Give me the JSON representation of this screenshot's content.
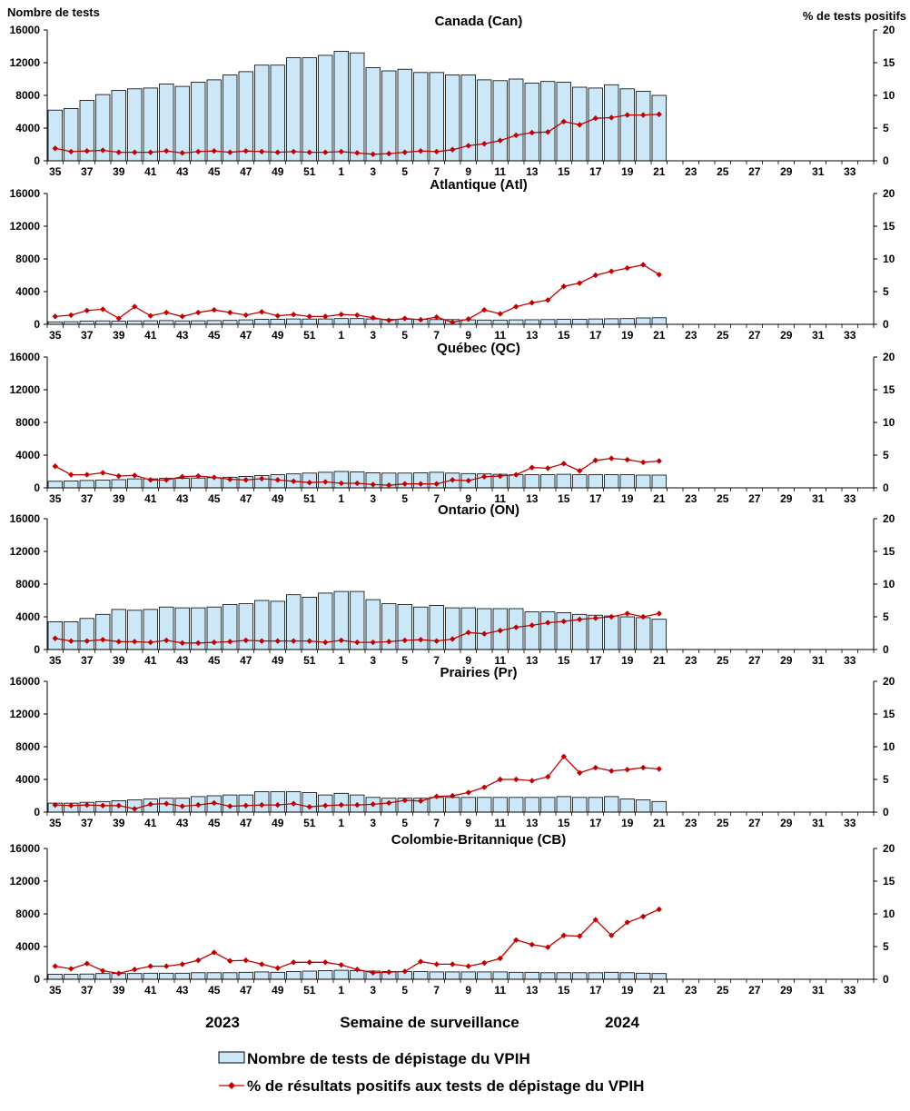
{
  "figure": {
    "left_axis_title": "Nombre de tests",
    "right_axis_title": "% de tests positifs",
    "xlabel": "Semaine de surveillance",
    "year_labels": [
      "2023",
      "2024"
    ],
    "legend": {
      "bars": "Nombre de tests de dépistage du VPIH",
      "line": "% de résultats positifs aux tests de dépistage du VPIH"
    },
    "colors": {
      "bar_fill": "#cce8f8",
      "bar_stroke": "#000000",
      "line": "#c00000"
    }
  },
  "chart_data": [
    {
      "type": "bar+line",
      "title": "Canada (Can)",
      "weeks": [
        35,
        36,
        37,
        38,
        39,
        40,
        41,
        42,
        43,
        44,
        45,
        46,
        47,
        48,
        49,
        50,
        51,
        52,
        1,
        2,
        3,
        4,
        5,
        6,
        7,
        8,
        9,
        10,
        11,
        12,
        13,
        14,
        15,
        16,
        17,
        18,
        19,
        20,
        21,
        22,
        23,
        24,
        25,
        26,
        27,
        28,
        29,
        30,
        31,
        32,
        33,
        34
      ],
      "x_tick_labels": [
        "35",
        "37",
        "39",
        "41",
        "43",
        "45",
        "47",
        "49",
        "51",
        "1",
        "3",
        "5",
        "7",
        "9",
        "11",
        "13",
        "15",
        "17",
        "19",
        "21",
        "23",
        "25",
        "27",
        "29",
        "31",
        "33"
      ],
      "tests": [
        6200,
        6400,
        7400,
        8100,
        8600,
        8800,
        8900,
        9400,
        9100,
        9600,
        9900,
        10500,
        10900,
        11700,
        11700,
        12600,
        12600,
        12900,
        13400,
        13200,
        11400,
        11000,
        11200,
        10800,
        10800,
        10500,
        10500,
        9900,
        9800,
        10000,
        9500,
        9700,
        9600,
        9000,
        8900,
        9300,
        8800,
        8500,
        8000
      ],
      "pct_positive": [
        1.9,
        1.4,
        1.5,
        1.6,
        1.3,
        1.3,
        1.3,
        1.5,
        1.2,
        1.4,
        1.5,
        1.3,
        1.5,
        1.4,
        1.3,
        1.4,
        1.3,
        1.3,
        1.4,
        1.2,
        1.0,
        1.1,
        1.3,
        1.5,
        1.4,
        1.7,
        2.3,
        2.6,
        3.1,
        3.9,
        4.3,
        4.4,
        6.0,
        5.5,
        6.5,
        6.6,
        7.0,
        7.0,
        7.1
      ],
      "ylim_left": [
        0,
        16000
      ],
      "yticks_left": [
        0,
        4000,
        8000,
        12000,
        16000
      ],
      "ylim_right": [
        0,
        20
      ],
      "yticks_right": [
        0,
        5,
        10,
        15,
        20
      ]
    },
    {
      "type": "bar+line",
      "title": "Atlantique (Atl)",
      "weeks": [
        35,
        36,
        37,
        38,
        39,
        40,
        41,
        42,
        43,
        44,
        45,
        46,
        47,
        48,
        49,
        50,
        51,
        52,
        1,
        2,
        3,
        4,
        5,
        6,
        7,
        8,
        9,
        10,
        11,
        12,
        13,
        14,
        15,
        16,
        17,
        18,
        19,
        20,
        21,
        22,
        23,
        24,
        25,
        26,
        27,
        28,
        29,
        30,
        31,
        32,
        33,
        34
      ],
      "x_tick_labels": [
        "35",
        "37",
        "39",
        "41",
        "43",
        "45",
        "47",
        "49",
        "51",
        "1",
        "3",
        "5",
        "7",
        "9",
        "11",
        "13",
        "15",
        "17",
        "19",
        "21",
        "23",
        "25",
        "27",
        "29",
        "31",
        "33"
      ],
      "tests": [
        300,
        320,
        380,
        420,
        380,
        420,
        430,
        450,
        420,
        430,
        460,
        480,
        550,
        600,
        620,
        650,
        640,
        650,
        700,
        700,
        650,
        600,
        620,
        600,
        580,
        580,
        550,
        520,
        520,
        540,
        560,
        580,
        600,
        620,
        650,
        680,
        700,
        780,
        800
      ],
      "pct_positive": [
        1.2,
        1.4,
        2.1,
        2.3,
        0.9,
        2.7,
        1.3,
        1.8,
        1.2,
        1.8,
        2.2,
        1.8,
        1.4,
        1.9,
        1.3,
        1.5,
        1.2,
        1.2,
        1.5,
        1.4,
        1.0,
        0.6,
        0.9,
        0.7,
        1.1,
        0.3,
        0.8,
        2.2,
        1.6,
        2.7,
        3.3,
        3.7,
        5.8,
        6.3,
        7.5,
        8.1,
        8.6,
        9.1,
        7.6
      ],
      "ylim_left": [
        0,
        16000
      ],
      "yticks_left": [
        0,
        4000,
        8000,
        12000,
        16000
      ],
      "ylim_right": [
        0,
        20
      ],
      "yticks_right": [
        0,
        5,
        10,
        15,
        20
      ]
    },
    {
      "type": "bar+line",
      "title": "Québec (QC)",
      "weeks": [
        35,
        36,
        37,
        38,
        39,
        40,
        41,
        42,
        43,
        44,
        45,
        46,
        47,
        48,
        49,
        50,
        51,
        52,
        1,
        2,
        3,
        4,
        5,
        6,
        7,
        8,
        9,
        10,
        11,
        12,
        13,
        14,
        15,
        16,
        17,
        18,
        19,
        20,
        21,
        22,
        23,
        24,
        25,
        26,
        27,
        28,
        29,
        30,
        31,
        32,
        33,
        34
      ],
      "x_tick_labels": [
        "35",
        "37",
        "39",
        "41",
        "43",
        "45",
        "47",
        "49",
        "51",
        "1",
        "3",
        "5",
        "7",
        "9",
        "11",
        "13",
        "15",
        "17",
        "19",
        "21",
        "23",
        "25",
        "27",
        "29",
        "31",
        "33"
      ],
      "tests": [
        800,
        850,
        900,
        950,
        1000,
        1100,
        1100,
        1150,
        1150,
        1200,
        1250,
        1300,
        1400,
        1500,
        1600,
        1700,
        1800,
        1900,
        2000,
        1950,
        1850,
        1800,
        1800,
        1850,
        1900,
        1800,
        1750,
        1700,
        1650,
        1600,
        1600,
        1600,
        1650,
        1600,
        1600,
        1600,
        1600,
        1550,
        1550
      ],
      "pct_positive": [
        3.3,
        2.0,
        2.0,
        2.3,
        1.8,
        1.9,
        1.2,
        1.2,
        1.7,
        1.8,
        1.6,
        1.3,
        1.2,
        1.4,
        1.2,
        1.0,
        0.8,
        0.9,
        0.7,
        0.7,
        0.5,
        0.4,
        0.6,
        0.6,
        0.6,
        1.2,
        1.1,
        1.7,
        1.8,
        2.0,
        3.1,
        3.0,
        3.7,
        2.6,
        4.2,
        4.5,
        4.3,
        3.9,
        4.1
      ],
      "ylim_left": [
        0,
        16000
      ],
      "yticks_left": [
        0,
        4000,
        8000,
        12000,
        16000
      ],
      "ylim_right": [
        0,
        20
      ],
      "yticks_right": [
        0,
        5,
        10,
        15,
        20
      ]
    },
    {
      "type": "bar+line",
      "title": "Ontario (ON)",
      "weeks": [
        35,
        36,
        37,
        38,
        39,
        40,
        41,
        42,
        43,
        44,
        45,
        46,
        47,
        48,
        49,
        50,
        51,
        52,
        1,
        2,
        3,
        4,
        5,
        6,
        7,
        8,
        9,
        10,
        11,
        12,
        13,
        14,
        15,
        16,
        17,
        18,
        19,
        20,
        21,
        22,
        23,
        24,
        25,
        26,
        27,
        28,
        29,
        30,
        31,
        32,
        33,
        34
      ],
      "x_tick_labels": [
        "35",
        "37",
        "39",
        "41",
        "43",
        "45",
        "47",
        "49",
        "51",
        "1",
        "3",
        "5",
        "7",
        "9",
        "11",
        "13",
        "15",
        "17",
        "19",
        "21",
        "23",
        "25",
        "27",
        "29",
        "31",
        "33"
      ],
      "tests": [
        3400,
        3400,
        3800,
        4300,
        4900,
        4800,
        4900,
        5200,
        5100,
        5100,
        5200,
        5500,
        5600,
        6000,
        5900,
        6700,
        6400,
        6900,
        7100,
        7100,
        6100,
        5600,
        5500,
        5200,
        5400,
        5100,
        5100,
        5000,
        5000,
        5000,
        4600,
        4600,
        4500,
        4300,
        4200,
        4100,
        4000,
        3900,
        3700
      ],
      "pct_positive": [
        1.7,
        1.3,
        1.3,
        1.5,
        1.2,
        1.2,
        1.1,
        1.4,
        1.0,
        1.0,
        1.1,
        1.2,
        1.4,
        1.3,
        1.3,
        1.3,
        1.3,
        1.1,
        1.4,
        1.1,
        1.1,
        1.2,
        1.4,
        1.5,
        1.3,
        1.6,
        2.6,
        2.4,
        2.9,
        3.4,
        3.7,
        4.1,
        4.3,
        4.6,
        4.8,
        5.0,
        5.5,
        5.0,
        5.5
      ],
      "ylim_left": [
        0,
        16000
      ],
      "yticks_left": [
        0,
        4000,
        8000,
        12000,
        16000
      ],
      "ylim_right": [
        0,
        20
      ],
      "yticks_right": [
        0,
        5,
        10,
        15,
        20
      ]
    },
    {
      "type": "bar+line",
      "title": "Prairies (Pr)",
      "weeks": [
        35,
        36,
        37,
        38,
        39,
        40,
        41,
        42,
        43,
        44,
        45,
        46,
        47,
        48,
        49,
        50,
        51,
        52,
        1,
        2,
        3,
        4,
        5,
        6,
        7,
        8,
        9,
        10,
        11,
        12,
        13,
        14,
        15,
        16,
        17,
        18,
        19,
        20,
        21,
        22,
        23,
        24,
        25,
        26,
        27,
        28,
        29,
        30,
        31,
        32,
        33,
        34
      ],
      "x_tick_labels": [
        "35",
        "37",
        "39",
        "41",
        "43",
        "45",
        "47",
        "49",
        "51",
        "1",
        "3",
        "5",
        "7",
        "9",
        "11",
        "13",
        "15",
        "17",
        "19",
        "21",
        "23",
        "25",
        "27",
        "29",
        "31",
        "33"
      ],
      "tests": [
        1100,
        1100,
        1200,
        1300,
        1400,
        1500,
        1600,
        1700,
        1700,
        1900,
        2000,
        2100,
        2100,
        2500,
        2500,
        2500,
        2400,
        2100,
        2300,
        2100,
        1800,
        1700,
        1700,
        1700,
        1800,
        1800,
        1800,
        1800,
        1800,
        1800,
        1800,
        1800,
        1900,
        1800,
        1800,
        1900,
        1600,
        1500,
        1300
      ],
      "pct_positive": [
        1.1,
        1.0,
        1.1,
        1.0,
        1.0,
        0.5,
        1.2,
        1.3,
        0.9,
        1.1,
        1.4,
        0.9,
        1.0,
        1.1,
        1.1,
        1.3,
        0.8,
        1.0,
        1.1,
        1.1,
        1.2,
        1.4,
        1.8,
        1.7,
        2.4,
        2.5,
        3.0,
        3.8,
        5.0,
        5.0,
        4.8,
        5.4,
        8.5,
        6.0,
        6.8,
        6.3,
        6.5,
        6.8,
        6.6
      ],
      "ylim_left": [
        0,
        16000
      ],
      "yticks_left": [
        0,
        4000,
        8000,
        12000,
        16000
      ],
      "ylim_right": [
        0,
        20
      ],
      "yticks_right": [
        0,
        5,
        10,
        15,
        20
      ]
    },
    {
      "type": "bar+line",
      "title": "Colombie-Britannique (CB)",
      "weeks": [
        35,
        36,
        37,
        38,
        39,
        40,
        41,
        42,
        43,
        44,
        45,
        46,
        47,
        48,
        49,
        50,
        51,
        52,
        1,
        2,
        3,
        4,
        5,
        6,
        7,
        8,
        9,
        10,
        11,
        12,
        13,
        14,
        15,
        16,
        17,
        18,
        19,
        20,
        21,
        22,
        23,
        24,
        25,
        26,
        27,
        28,
        29,
        30,
        31,
        32,
        33,
        34
      ],
      "x_tick_labels": [
        "35",
        "37",
        "39",
        "41",
        "43",
        "45",
        "47",
        "49",
        "51",
        "1",
        "3",
        "5",
        "7",
        "9",
        "11",
        "13",
        "15",
        "17",
        "19",
        "21",
        "23",
        "25",
        "27",
        "29",
        "31",
        "33"
      ],
      "tests": [
        600,
        600,
        650,
        700,
        700,
        700,
        750,
        750,
        750,
        800,
        800,
        800,
        850,
        900,
        850,
        950,
        1000,
        1050,
        1100,
        1050,
        1000,
        950,
        950,
        950,
        900,
        900,
        900,
        900,
        900,
        850,
        850,
        800,
        800,
        800,
        800,
        850,
        800,
        750,
        700
      ],
      "pct_positive": [
        2.0,
        1.6,
        2.4,
        1.3,
        0.9,
        1.5,
        2.0,
        2.0,
        2.3,
        2.9,
        4.1,
        2.8,
        2.9,
        2.3,
        1.7,
        2.6,
        2.6,
        2.6,
        2.2,
        1.5,
        1.0,
        1.1,
        1.2,
        2.7,
        2.3,
        2.3,
        2.0,
        2.5,
        3.2,
        6.0,
        5.3,
        4.9,
        6.7,
        6.6,
        9.1,
        6.7,
        8.7,
        9.6,
        10.7
      ],
      "ylim_left": [
        0,
        16000
      ],
      "yticks_left": [
        0,
        4000,
        8000,
        12000,
        16000
      ],
      "ylim_right": [
        0,
        20
      ],
      "yticks_right": [
        0,
        5,
        10,
        15,
        20
      ]
    }
  ]
}
